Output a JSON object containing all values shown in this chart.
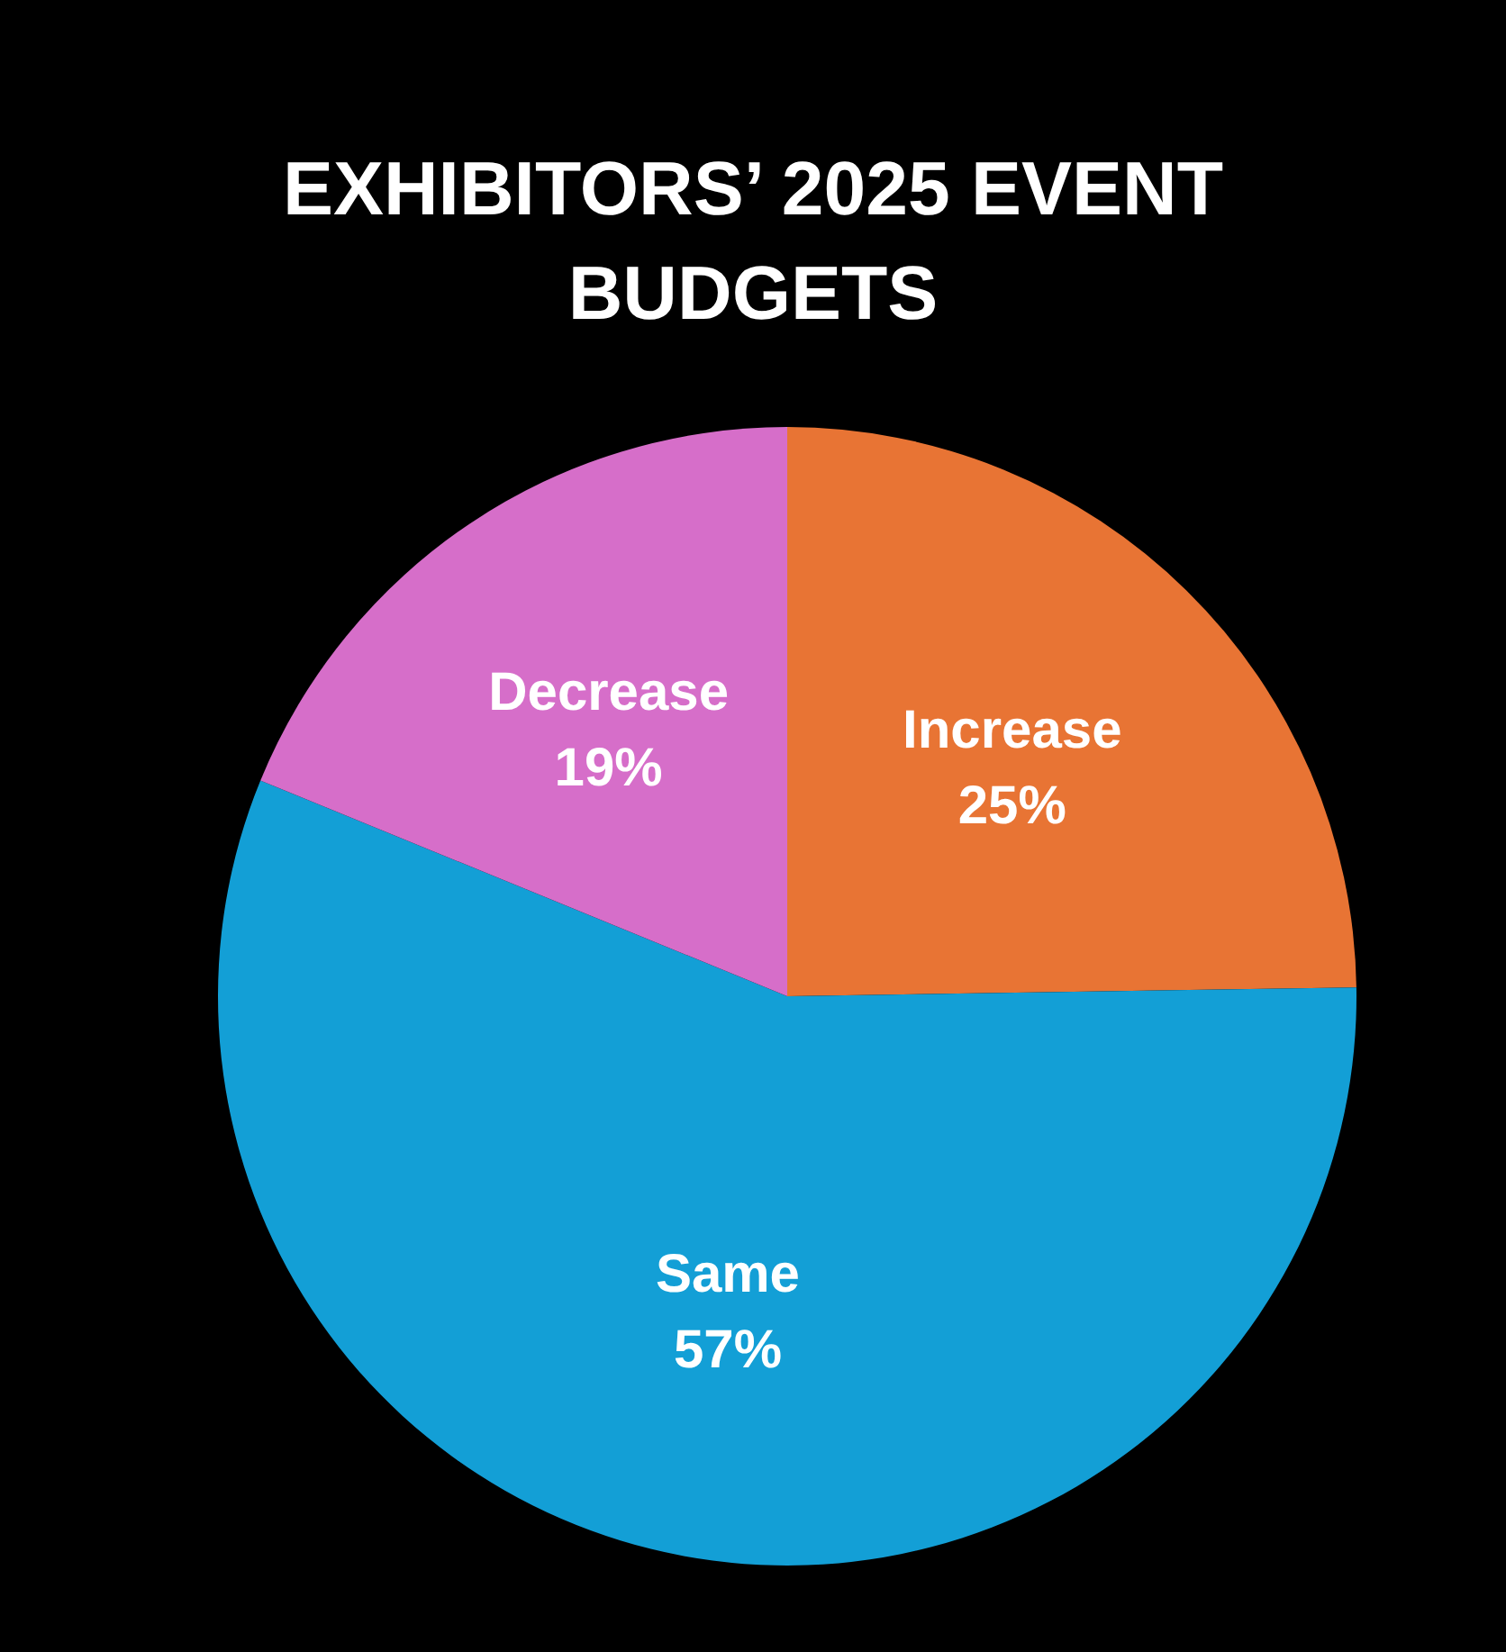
{
  "chart_data": {
    "type": "pie",
    "title": "EXHIBITORS’ 2025 EVENT BUDGETS",
    "categories": [
      "Increase",
      "Same",
      "Decrease"
    ],
    "values": [
      25,
      57,
      19
    ],
    "value_labels": [
      "25%",
      "57%",
      "19%"
    ],
    "colors": [
      "#e87434",
      "#139fd6",
      "#d66ec9"
    ],
    "legend": false
  }
}
